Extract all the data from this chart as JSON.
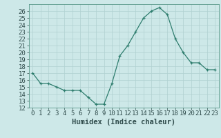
{
  "x": [
    0,
    1,
    2,
    3,
    4,
    5,
    6,
    7,
    8,
    9,
    10,
    11,
    12,
    13,
    14,
    15,
    16,
    17,
    18,
    19,
    20,
    21,
    22,
    23
  ],
  "y": [
    17.0,
    15.5,
    15.5,
    15.0,
    14.5,
    14.5,
    14.5,
    13.5,
    12.5,
    12.5,
    15.5,
    19.5,
    21.0,
    23.0,
    25.0,
    26.0,
    26.5,
    25.5,
    22.0,
    20.0,
    18.5,
    18.5,
    17.5,
    17.5
  ],
  "xlabel": "Humidex (Indice chaleur)",
  "xlim": [
    -0.5,
    23.5
  ],
  "ylim": [
    12,
    27
  ],
  "yticks": [
    12,
    13,
    14,
    15,
    16,
    17,
    18,
    19,
    20,
    21,
    22,
    23,
    24,
    25,
    26
  ],
  "xticks": [
    0,
    1,
    2,
    3,
    4,
    5,
    6,
    7,
    8,
    9,
    10,
    11,
    12,
    13,
    14,
    15,
    16,
    17,
    18,
    19,
    20,
    21,
    22,
    23
  ],
  "line_color": "#2e7d6e",
  "marker": "+",
  "bg_color": "#cde8e8",
  "grid_color": "#b0d0d0",
  "spine_color": "#5a9a8a",
  "font_color": "#2e4a4a",
  "tick_font_size": 6.5,
  "label_font_size": 7.5
}
